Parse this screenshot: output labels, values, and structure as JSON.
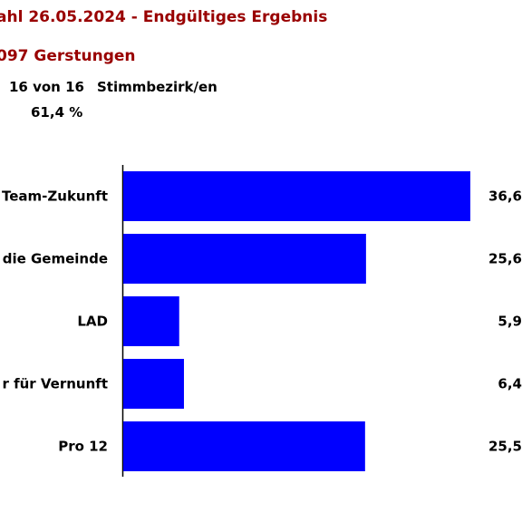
{
  "header": {
    "title": "ahl 26.05.2024 - Endgültiges Ergebnis",
    "subtitle": "097 Gerstungen",
    "districts_counted": "16 von 16",
    "districts_label": "Stimmbezirk/en",
    "turnout": "61,4 %"
  },
  "chart_data": {
    "type": "bar",
    "orientation": "horizontal",
    "categories": [
      "Team-Zukunft",
      "die Gemeinde",
      "LAD",
      "r für Vernunft",
      "Pro 12"
    ],
    "values": [
      36.6,
      25.6,
      5.9,
      6.4,
      25.5
    ],
    "value_labels": [
      "36,6",
      "25,6",
      "5,9",
      "6,4",
      "25,5"
    ],
    "xlim": [
      0,
      37
    ],
    "grid": false,
    "bar_color": "#0000ff"
  },
  "colors": {
    "title": "#990000",
    "bar": "#0000ff",
    "text": "#000000"
  }
}
